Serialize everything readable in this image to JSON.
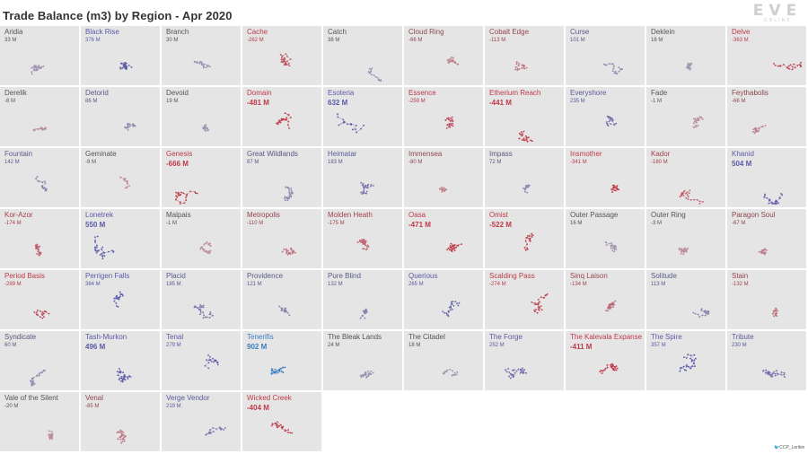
{
  "title": "Trade Balance (m3) by Region - Apr 2020",
  "logo": {
    "main": "EVE",
    "sub": "ONLINE",
    "color": "#cfcfcf"
  },
  "credit": "🐦CCP_Lerikin",
  "colors": {
    "negative": "#bf3a48",
    "positive": "#5b5ba8",
    "strongest_positive": "#3c7fc2",
    "neutral_text": "#555555",
    "tile_background": "#e5e5e5"
  },
  "chart_data": {
    "type": "small-multiples",
    "metric": "Trade Balance (m3)",
    "unit": "M",
    "columns": 10,
    "regions": [
      {
        "name": "Aridia",
        "value": 33,
        "label": "33 M"
      },
      {
        "name": "Black Rise",
        "value": 376,
        "label": "376 M"
      },
      {
        "name": "Branch",
        "value": 30,
        "label": "30 M"
      },
      {
        "name": "Cache",
        "value": -262,
        "label": "-262 M"
      },
      {
        "name": "Catch",
        "value": 38,
        "label": "38 M"
      },
      {
        "name": "Cloud Ring",
        "value": -66,
        "label": "-66 M"
      },
      {
        "name": "Cobalt Edge",
        "value": -113,
        "label": "-113 M"
      },
      {
        "name": "Curse",
        "value": 101,
        "label": "101 M"
      },
      {
        "name": "Deklein",
        "value": 18,
        "label": "18 M"
      },
      {
        "name": "Delve",
        "value": -363,
        "label": "-363 M"
      },
      {
        "name": "Derelik",
        "value": -8,
        "label": "-8 M"
      },
      {
        "name": "Detorid",
        "value": 86,
        "label": "86 M"
      },
      {
        "name": "Devoid",
        "value": 19,
        "label": "19 M"
      },
      {
        "name": "Domain",
        "value": -481,
        "label": "-481 M"
      },
      {
        "name": "Esoteria",
        "value": 632,
        "label": "632 M"
      },
      {
        "name": "Essence",
        "value": -259,
        "label": "-259 M"
      },
      {
        "name": "Etherium Reach",
        "value": -441,
        "label": "-441 M"
      },
      {
        "name": "Everyshore",
        "value": 235,
        "label": "235 M"
      },
      {
        "name": "Fade",
        "value": -1,
        "label": "-1 M"
      },
      {
        "name": "Feythabolis",
        "value": -66,
        "label": "-66 M"
      },
      {
        "name": "Fountain",
        "value": 142,
        "label": "142 M"
      },
      {
        "name": "Geminate",
        "value": -9,
        "label": "-9 M"
      },
      {
        "name": "Genesis",
        "value": -666,
        "label": "-666 M"
      },
      {
        "name": "Great Wildlands",
        "value": 87,
        "label": "87 M"
      },
      {
        "name": "Heimatar",
        "value": 183,
        "label": "183 M"
      },
      {
        "name": "Immensea",
        "value": -80,
        "label": "-80 M"
      },
      {
        "name": "Impass",
        "value": 72,
        "label": "72 M"
      },
      {
        "name": "Insmother",
        "value": -341,
        "label": "-341 M"
      },
      {
        "name": "Kador",
        "value": -180,
        "label": "-180 M"
      },
      {
        "name": "Khanid",
        "value": 504,
        "label": "504 M"
      },
      {
        "name": "Kor-Azor",
        "value": -174,
        "label": "-174 M"
      },
      {
        "name": "Lonetrek",
        "value": 550,
        "label": "550 M"
      },
      {
        "name": "Malpais",
        "value": -1,
        "label": "-1 M"
      },
      {
        "name": "Metropolis",
        "value": -110,
        "label": "-110 M"
      },
      {
        "name": "Molden Heath",
        "value": -175,
        "label": "-175 M"
      },
      {
        "name": "Oasa",
        "value": -471,
        "label": "-471 M"
      },
      {
        "name": "Omist",
        "value": -522,
        "label": "-522 M"
      },
      {
        "name": "Outer Passage",
        "value": 16,
        "label": "16 M"
      },
      {
        "name": "Outer Ring",
        "value": -3,
        "label": "-3 M"
      },
      {
        "name": "Paragon Soul",
        "value": -67,
        "label": "-67 M"
      },
      {
        "name": "Period Basis",
        "value": -289,
        "label": "-289 M"
      },
      {
        "name": "Perrigen Falls",
        "value": 384,
        "label": "384 M"
      },
      {
        "name": "Placid",
        "value": 185,
        "label": "185 M"
      },
      {
        "name": "Providence",
        "value": 121,
        "label": "121 M"
      },
      {
        "name": "Pure Blind",
        "value": 132,
        "label": "132 M"
      },
      {
        "name": "Querious",
        "value": 265,
        "label": "265 M"
      },
      {
        "name": "Scalding Pass",
        "value": -274,
        "label": "-274 M"
      },
      {
        "name": "Sinq Laison",
        "value": -134,
        "label": "-134 M"
      },
      {
        "name": "Solitude",
        "value": 113,
        "label": "113 M"
      },
      {
        "name": "Stain",
        "value": -132,
        "label": "-132 M"
      },
      {
        "name": "Syndicate",
        "value": 60,
        "label": "60 M"
      },
      {
        "name": "Tash-Murkon",
        "value": 496,
        "label": "496 M"
      },
      {
        "name": "Tenal",
        "value": 279,
        "label": "279 M"
      },
      {
        "name": "Tenerifis",
        "value": 902,
        "label": "902 M"
      },
      {
        "name": "The Bleak Lands",
        "value": 24,
        "label": "24 M"
      },
      {
        "name": "The Citadel",
        "value": 18,
        "label": "18 M"
      },
      {
        "name": "The Forge",
        "value": 252,
        "label": "252 M"
      },
      {
        "name": "The Kalevala Expanse",
        "value": -411,
        "label": "-411 M"
      },
      {
        "name": "The Spire",
        "value": 357,
        "label": "357 M"
      },
      {
        "name": "Tribute",
        "value": 230,
        "label": "230 M"
      },
      {
        "name": "Vale of the Silent",
        "value": -20,
        "label": "-20 M"
      },
      {
        "name": "Venal",
        "value": -85,
        "label": "-85 M"
      },
      {
        "name": "Verge Vendor",
        "value": 219,
        "label": "219 M"
      },
      {
        "name": "Wicked Creek",
        "value": -404,
        "label": "-404 M"
      }
    ]
  }
}
